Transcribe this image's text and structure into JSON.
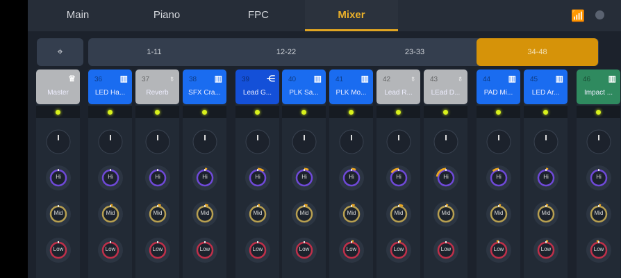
{
  "tabs": [
    {
      "label": "Main",
      "active": false
    },
    {
      "label": "Piano",
      "active": false
    },
    {
      "label": "FPC",
      "active": false
    },
    {
      "label": "Mixer",
      "active": true
    }
  ],
  "status": {
    "wifi_icon": "wifi-icon",
    "wifi_color": "#b7e21f"
  },
  "locate_icon": "crosshair-icon",
  "ranges": [
    {
      "label": "1-11",
      "active": false
    },
    {
      "label": "12-22",
      "active": false
    },
    {
      "label": "23-33",
      "active": false
    },
    {
      "label": "34-48",
      "active": true
    }
  ],
  "colors": {
    "accent": "#e0a522",
    "blue": "#1a6cf0",
    "gray": "#b4b6b9",
    "green": "#2f8a5f",
    "hi": "#6f49d8",
    "mid": "#b8a050",
    "low": "#c0304a",
    "led": "#d9f21c"
  },
  "knob_labels": {
    "hi": "Hi",
    "mid": "Mid",
    "low": "Low"
  },
  "channels": [
    {
      "num": "",
      "name": "Master",
      "type": "master",
      "icon": "crown-icon",
      "hi": 0,
      "mid": 0,
      "low": 0
    },
    {
      "num": "36",
      "name": "LED Ha...",
      "type": "blue",
      "icon": "piano-icon",
      "hi": 0,
      "mid": 0.1,
      "low": 0
    },
    {
      "num": "37",
      "name": "Reverb",
      "type": "gray",
      "icon": "bulb-icon",
      "hi": 0,
      "mid": 0.15,
      "low": 0
    },
    {
      "num": "38",
      "name": "SFX Cra...",
      "type": "blue",
      "icon": "piano-icon",
      "hi": 0.1,
      "mid": 0.15,
      "low": 0
    },
    {
      "num": "39",
      "name": "Lead G...",
      "type": "blue",
      "icon": "route-icon",
      "hi": 0.3,
      "mid": 0.1,
      "low": 0
    },
    {
      "num": "40",
      "name": "PLK Sa...",
      "type": "blue",
      "icon": "piano-icon",
      "hi": 0.2,
      "mid": 0.15,
      "low": 0
    },
    {
      "num": "41",
      "name": "PLK Mo...",
      "type": "blue",
      "icon": "piano-icon",
      "hi": 0.2,
      "mid": 0.15,
      "low": 0.1
    },
    {
      "num": "42",
      "name": "Lead R...",
      "type": "gray",
      "icon": "bulb-icon",
      "hi": -0.4,
      "mid": 0.2,
      "low": 0.1
    },
    {
      "num": "43",
      "name": "LEad D...",
      "type": "gray",
      "icon": "bulb-icon",
      "hi": -0.6,
      "mid": 0.1,
      "low": 0
    },
    {
      "num": "44",
      "name": "PAD Mi...",
      "type": "blue",
      "icon": "piano-icon",
      "hi": -0.3,
      "mid": 0.1,
      "low": -0.1
    },
    {
      "num": "45",
      "name": "LED Ar...",
      "type": "blue",
      "icon": "piano-icon",
      "hi": 0.1,
      "mid": 0.1,
      "low": 0.1
    },
    {
      "num": "46",
      "name": "Impact ...",
      "type": "green",
      "icon": "piano-icon",
      "hi": 0,
      "mid": 0.1,
      "low": -0.1
    }
  ]
}
